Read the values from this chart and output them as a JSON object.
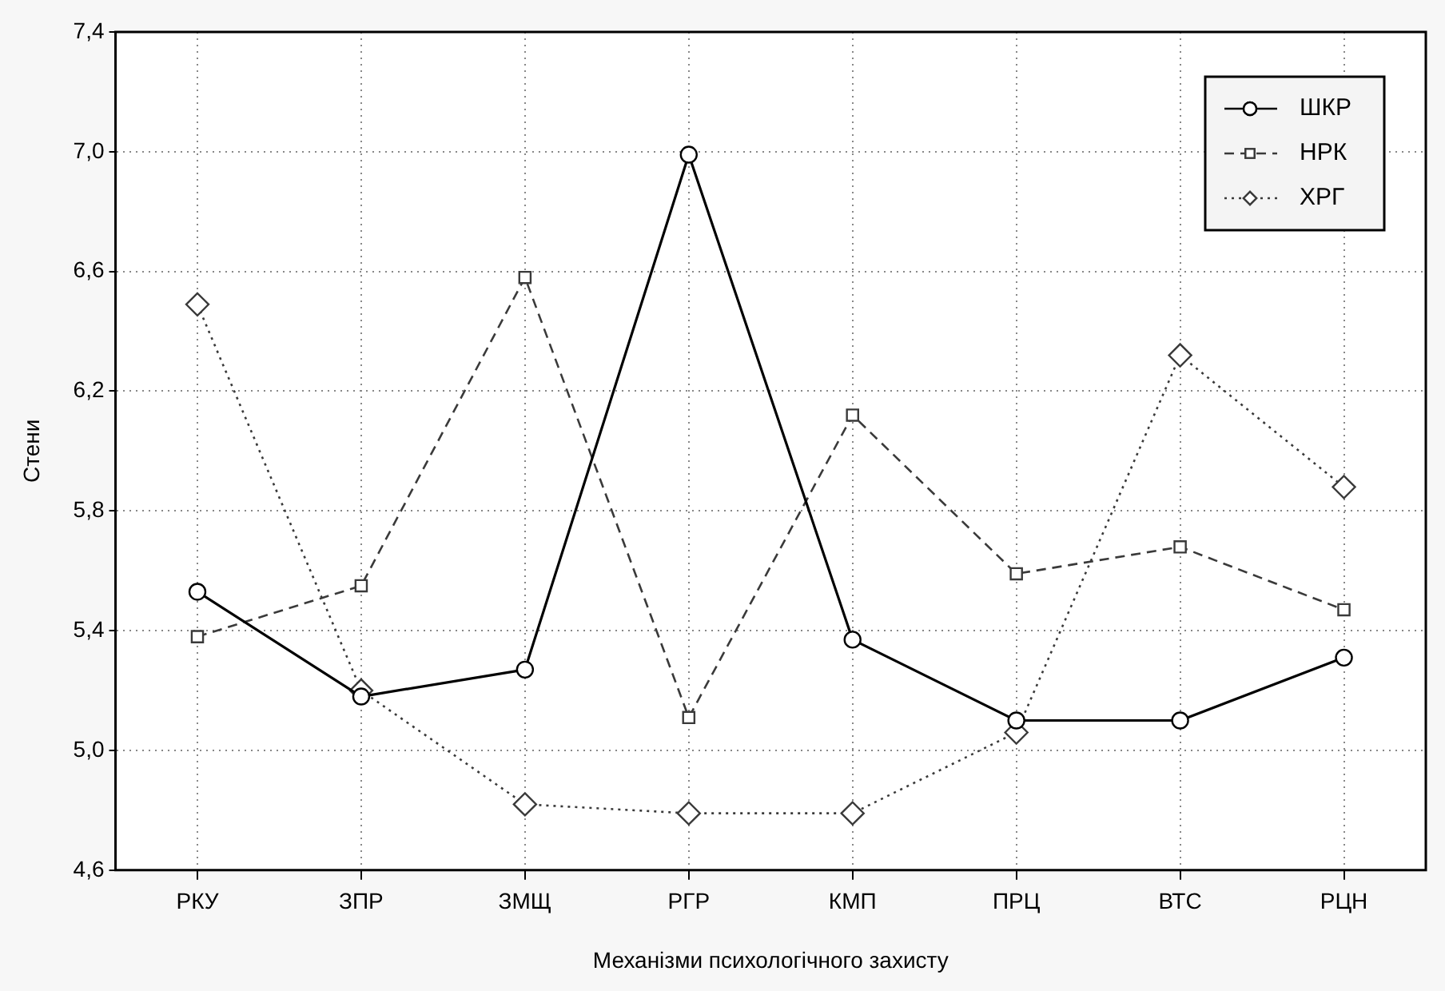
{
  "chart_data": {
    "type": "line",
    "xlabel": "Механізми психологічного захисту",
    "ylabel": "Стени",
    "categories": [
      "РКУ",
      "ЗПР",
      "ЗМЩ",
      "РГР",
      "КМП",
      "ПРЦ",
      "ВТС",
      "РЦН"
    ],
    "ylim": [
      4.6,
      7.4
    ],
    "yticks": [
      {
        "value": 4.6,
        "label": "4,6"
      },
      {
        "value": 5.0,
        "label": "5,0"
      },
      {
        "value": 5.4,
        "label": "5,4"
      },
      {
        "value": 5.8,
        "label": "5,8"
      },
      {
        "value": 6.2,
        "label": "6,2"
      },
      {
        "value": 6.6,
        "label": "6,6"
      },
      {
        "value": 7.0,
        "label": "7,0"
      },
      {
        "value": 7.4,
        "label": "7,4"
      }
    ],
    "grid": true,
    "legend": "top right",
    "series": [
      {
        "name": "ШКР",
        "color": "#000000",
        "marker": "circle",
        "line_style": "solid",
        "values": [
          5.53,
          5.18,
          5.27,
          6.99,
          5.37,
          5.1,
          5.1,
          5.31
        ]
      },
      {
        "name": "НРК",
        "color": "#3a3a3a",
        "marker": "square",
        "line_style": "dashed",
        "values": [
          5.38,
          5.55,
          6.58,
          5.11,
          6.12,
          5.59,
          5.68,
          5.47
        ]
      },
      {
        "name": "ХРГ",
        "color": "#3a3a3a",
        "marker": "diamond",
        "line_style": "dotted",
        "values": [
          6.49,
          5.2,
          4.82,
          4.79,
          4.79,
          5.06,
          6.32,
          5.88
        ]
      }
    ]
  }
}
